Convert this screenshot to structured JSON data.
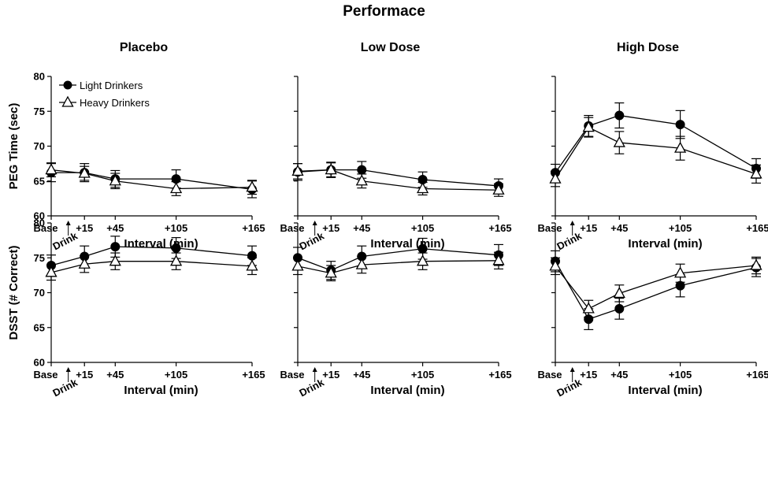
{
  "title": "Performace",
  "columns": [
    "Placebo",
    "Low Dose",
    "High Dose"
  ],
  "legend": {
    "light": "Light Drinkers",
    "heavy": "Heavy Drinkers",
    "position": "top-left of first panel"
  },
  "x_tick_labels": [
    "Base",
    "+15",
    "+45",
    "+105",
    "+165"
  ],
  "xlabel": "Interval (min)",
  "drink_label": "Drink",
  "rows": [
    {
      "ylabel": "PEG Time (sec)",
      "ylim": [
        60,
        80
      ],
      "yticks": [
        60,
        65,
        70,
        75,
        80
      ]
    },
    {
      "ylabel": "DSST  (# Correct)",
      "ylim": [
        60,
        80
      ],
      "yticks": [
        60,
        65,
        70,
        75,
        80
      ]
    }
  ],
  "chart_data": [
    {
      "type": "line",
      "row": 0,
      "col": 0,
      "title": "Placebo",
      "xlabel": "Interval (min)",
      "ylabel": "PEG Time (sec)",
      "ylim": [
        60,
        80
      ],
      "x": [
        "Base",
        "+15",
        "+45",
        "+105",
        "+165"
      ],
      "series": [
        {
          "name": "Light Drinkers",
          "marker": "filled-circle",
          "values": [
            66.2,
            66.2,
            65.3,
            65.3,
            63.8
          ],
          "error": [
            1.3,
            1.3,
            1.2,
            1.3,
            1.2
          ]
        },
        {
          "name": "Heavy Drinkers",
          "marker": "open-triangle",
          "values": [
            66.6,
            66.1,
            65.0,
            63.9,
            64.1
          ],
          "error": [
            1.0,
            1.0,
            1.1,
            1.0,
            1.0
          ]
        }
      ]
    },
    {
      "type": "line",
      "row": 0,
      "col": 1,
      "title": "Low Dose",
      "xlabel": "Interval (min)",
      "ylabel": "PEG Time (sec)",
      "ylim": [
        60,
        80
      ],
      "x": [
        "Base",
        "+15",
        "+45",
        "+105",
        "+165"
      ],
      "series": [
        {
          "name": "Light Drinkers",
          "marker": "filled-circle",
          "values": [
            66.3,
            66.6,
            66.6,
            65.2,
            64.3
          ],
          "error": [
            1.2,
            1.1,
            1.2,
            1.1,
            1.0
          ]
        },
        {
          "name": "Heavy Drinkers",
          "marker": "open-triangle",
          "values": [
            66.4,
            66.6,
            65.0,
            63.9,
            63.7
          ],
          "error": [
            1.1,
            1.0,
            1.0,
            0.9,
            0.9
          ]
        }
      ]
    },
    {
      "type": "line",
      "row": 0,
      "col": 2,
      "title": "High Dose",
      "xlabel": "Interval (min)",
      "ylabel": "PEG Time (sec)",
      "ylim": [
        60,
        80
      ],
      "x": [
        "Base",
        "+15",
        "+45",
        "+105",
        "+165"
      ],
      "series": [
        {
          "name": "Light Drinkers",
          "marker": "filled-circle",
          "values": [
            66.2,
            72.9,
            74.4,
            73.1,
            66.8
          ],
          "error": [
            1.2,
            1.5,
            1.8,
            2.0,
            1.4
          ]
        },
        {
          "name": "Heavy Drinkers",
          "marker": "open-triangle",
          "values": [
            65.3,
            72.7,
            70.5,
            69.7,
            66.0
          ],
          "error": [
            1.1,
            1.4,
            1.6,
            1.7,
            1.3
          ]
        }
      ]
    },
    {
      "type": "line",
      "row": 1,
      "col": 0,
      "title": "Placebo",
      "xlabel": "Interval (min)",
      "ylabel": "DSST  (# Correct)",
      "ylim": [
        60,
        80
      ],
      "x": [
        "Base",
        "+15",
        "+45",
        "+105",
        "+165"
      ],
      "series": [
        {
          "name": "Light Drinkers",
          "marker": "filled-circle",
          "values": [
            73.9,
            75.2,
            76.6,
            76.4,
            75.3
          ],
          "error": [
            1.5,
            1.5,
            1.5,
            1.5,
            1.4
          ]
        },
        {
          "name": "Heavy Drinkers",
          "marker": "open-triangle",
          "values": [
            72.9,
            74.1,
            74.5,
            74.5,
            73.8
          ],
          "error": [
            1.1,
            1.2,
            1.2,
            1.2,
            1.2
          ]
        }
      ]
    },
    {
      "type": "line",
      "row": 1,
      "col": 1,
      "title": "Low Dose",
      "xlabel": "Interval (min)",
      "ylabel": "DSST  (# Correct)",
      "ylim": [
        60,
        80
      ],
      "x": [
        "Base",
        "+15",
        "+45",
        "+105",
        "+165"
      ],
      "series": [
        {
          "name": "Light Drinkers",
          "marker": "filled-circle",
          "values": [
            75.0,
            73.2,
            75.2,
            76.3,
            75.4
          ],
          "error": [
            1.5,
            1.3,
            1.5,
            1.5,
            1.5
          ]
        },
        {
          "name": "Heavy Drinkers",
          "marker": "open-triangle",
          "values": [
            73.8,
            72.8,
            74.0,
            74.5,
            74.6
          ],
          "error": [
            1.2,
            1.1,
            1.2,
            1.2,
            1.2
          ]
        }
      ]
    },
    {
      "type": "line",
      "row": 1,
      "col": 2,
      "title": "High Dose",
      "xlabel": "Interval (min)",
      "ylabel": "DSST  (# Correct)",
      "ylim": [
        60,
        80
      ],
      "x": [
        "Base",
        "+15",
        "+45",
        "+105",
        "+165"
      ],
      "series": [
        {
          "name": "Light Drinkers",
          "marker": "filled-circle",
          "values": [
            74.5,
            66.2,
            67.7,
            71.0,
            73.6
          ],
          "error": [
            1.5,
            1.5,
            1.5,
            1.6,
            1.3
          ]
        },
        {
          "name": "Heavy Drinkers",
          "marker": "open-triangle",
          "values": [
            73.8,
            67.7,
            69.9,
            72.8,
            73.9
          ],
          "error": [
            1.2,
            1.2,
            1.2,
            1.3,
            1.2
          ]
        }
      ]
    }
  ]
}
